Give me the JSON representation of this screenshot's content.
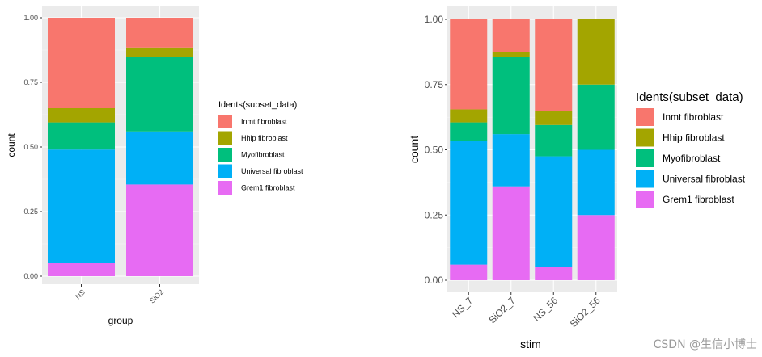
{
  "chart_data": [
    {
      "type": "bar",
      "stacked": true,
      "xlabel": "group",
      "ylabel": "count",
      "ylim": [
        0,
        1
      ],
      "yticks": [
        "0.00",
        "0.25",
        "0.50",
        "0.75",
        "1.00"
      ],
      "categories": [
        "NS",
        "SiO2"
      ],
      "legend_title": "Idents(subset_data)",
      "series": [
        {
          "name": "Inmt fibroblast",
          "color": "#F8766D",
          "values": [
            0.35,
            0.115
          ]
        },
        {
          "name": "Hhip fibroblast",
          "color": "#A3A500",
          "values": [
            0.055,
            0.035
          ]
        },
        {
          "name": "Myofibroblast",
          "color": "#00BF7D",
          "values": [
            0.105,
            0.29
          ]
        },
        {
          "name": "Universal fibroblast",
          "color": "#00B0F6",
          "values": [
            0.44,
            0.205
          ]
        },
        {
          "name": "Grem1 fibroblast",
          "color": "#E76BF3",
          "values": [
            0.05,
            0.355
          ]
        }
      ]
    },
    {
      "type": "bar",
      "stacked": true,
      "xlabel": "stim",
      "ylabel": "count",
      "ylim": [
        0,
        1
      ],
      "yticks": [
        "0.00",
        "0.25",
        "0.50",
        "0.75",
        "1.00"
      ],
      "categories": [
        "NS_7",
        "SiO2_7",
        "NS_56",
        "SiO2_56"
      ],
      "legend_title": "Idents(subset_data)",
      "series": [
        {
          "name": "Inmt fibroblast",
          "color": "#F8766D",
          "values": [
            0.345,
            0.125,
            0.35,
            0.0
          ]
        },
        {
          "name": "Hhip fibroblast",
          "color": "#A3A500",
          "values": [
            0.05,
            0.02,
            0.055,
            0.25
          ]
        },
        {
          "name": "Myofibroblast",
          "color": "#00BF7D",
          "values": [
            0.07,
            0.295,
            0.12,
            0.25
          ]
        },
        {
          "name": "Universal fibroblast",
          "color": "#00B0F6",
          "values": [
            0.475,
            0.2,
            0.425,
            0.25
          ]
        },
        {
          "name": "Grem1 fibroblast",
          "color": "#E76BF3",
          "values": [
            0.06,
            0.36,
            0.05,
            0.25
          ]
        }
      ]
    }
  ],
  "watermark": "CSDN @生信小博士"
}
